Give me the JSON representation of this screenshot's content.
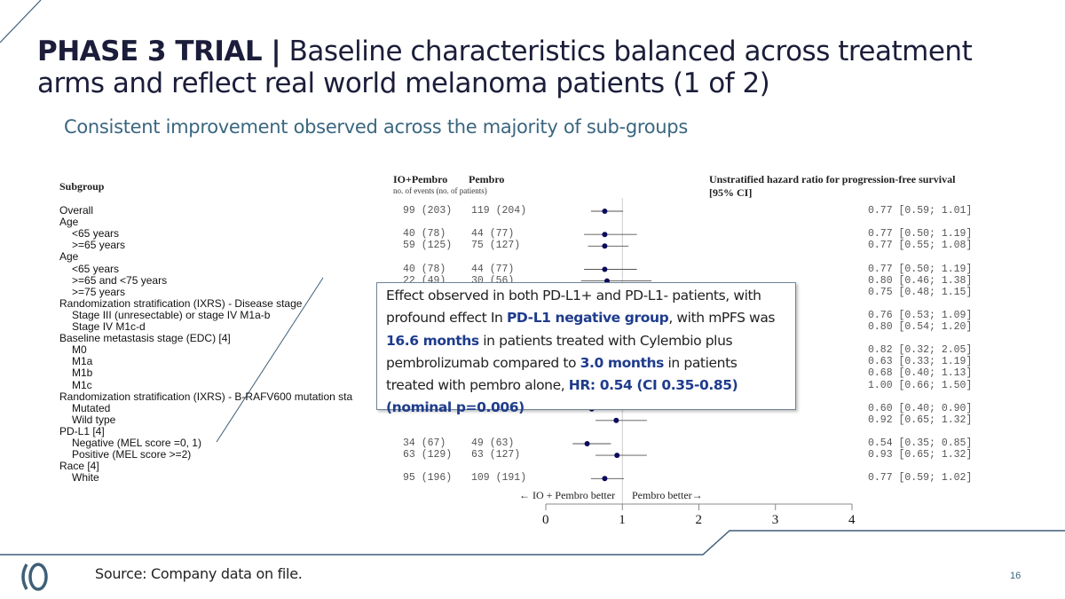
{
  "header": {
    "title_bold": "PHASE 3 TRIAL |",
    "title_rest": " Baseline characteristics balanced across treatment arms and reflect real world melanoma patients (1 of 2)",
    "subtitle": "Consistent improvement observed across the majority of sub-groups"
  },
  "callout": {
    "p1": "Effect observed in both PD-L1+ and PD-L1- patients, with profound effect In ",
    "b1": "PD-L1 negative group",
    "p2": ", with mPFS was ",
    "b2": "16.6 months",
    "p3": " in patients treated with Cylembio plus pembrolizumab compared to ",
    "b3": "3.0 months",
    "p4": " in patients treated with pembro alone, ",
    "b4": "HR: 0.54 (CI 0.35-0.85) (nominal p=0.006)"
  },
  "footer": {
    "source": "Source: Company data on file.",
    "page": "16",
    "logo_text": "IO"
  },
  "colors": {
    "accent": "#1f3c8c",
    "title": "#1b1d3a",
    "subtitle": "#3a6680",
    "marker": "#0b0b5e",
    "rule": "#3f5f78"
  },
  "chart_data": {
    "type": "forest",
    "col_subgroup": "Subgroup",
    "col_arm1": "IO+Pembro",
    "col_arm2": "Pembro",
    "col_counts_note": "no. of events  (no. of patients)",
    "col_hr": "Unstratified hazard ratio for progression-free survival",
    "col_hr2": "[95% CI]",
    "xlim": [
      0,
      4
    ],
    "xticks": [
      "0",
      "1",
      "2",
      "3",
      "4"
    ],
    "reference_line": 1,
    "left_label": "← IO + Pembro better",
    "right_label": "Pembro better→",
    "rows": [
      {
        "label": "Overall",
        "indent": 0,
        "io": "99 (203)",
        "pem": "119 (204)",
        "hr": 0.77,
        "lo": 0.59,
        "hi": 1.01
      },
      {
        "label": "Age",
        "indent": 0
      },
      {
        "label": "<65 years",
        "indent": 1,
        "io": "40 (78)",
        "pem": "44 (77)",
        "hr": 0.77,
        "lo": 0.5,
        "hi": 1.19
      },
      {
        "label": ">=65 years",
        "indent": 1,
        "io": "59 (125)",
        "pem": "75 (127)",
        "hr": 0.77,
        "lo": 0.55,
        "hi": 1.08
      },
      {
        "label": "Age",
        "indent": 0
      },
      {
        "label": "<65 years",
        "indent": 1,
        "io": "40 (78)",
        "pem": "44 (77)",
        "hr": 0.77,
        "lo": 0.5,
        "hi": 1.19
      },
      {
        "label": ">=65 and <75 years",
        "indent": 1,
        "io": "22 (49)",
        "pem": "30 (56)",
        "hr": 0.8,
        "lo": 0.46,
        "hi": 1.38
      },
      {
        "label": ">=75 years",
        "indent": 1,
        "hr": 0.75,
        "lo": 0.48,
        "hi": 1.15
      },
      {
        "label": "Randomization stratification (IXRS) - Disease stage",
        "indent": 0
      },
      {
        "label": "Stage III (unresectable) or stage IV M1a-b",
        "indent": 1,
        "hr": 0.76,
        "lo": 0.53,
        "hi": 1.09
      },
      {
        "label": "Stage IV M1c-d",
        "indent": 1,
        "hr": 0.8,
        "lo": 0.54,
        "hi": 1.2
      },
      {
        "label": "Baseline metastasis stage (EDC) [4]",
        "indent": 0
      },
      {
        "label": "M0",
        "indent": 1,
        "hr": 0.82,
        "lo": 0.32,
        "hi": 2.05
      },
      {
        "label": "M1a",
        "indent": 1,
        "hr": 0.63,
        "lo": 0.33,
        "hi": 1.19
      },
      {
        "label": "M1b",
        "indent": 1,
        "hr": 0.68,
        "lo": 0.4,
        "hi": 1.13
      },
      {
        "label": "M1c",
        "indent": 1,
        "hr": 1.0,
        "lo": 0.66,
        "hi": 1.5
      },
      {
        "label": "Randomization stratification (IXRS) - B-RAFV600 mutation sta",
        "indent": 0
      },
      {
        "label": "Mutated",
        "indent": 1,
        "hr": 0.6,
        "lo": 0.4,
        "hi": 0.9
      },
      {
        "label": "Wild type",
        "indent": 1,
        "hr": 0.92,
        "lo": 0.65,
        "hi": 1.32
      },
      {
        "label": "PD-L1 [4]",
        "indent": 0
      },
      {
        "label": "Negative (MEL score =0, 1)",
        "indent": 1,
        "io": "34 (67)",
        "pem": "49 (63)",
        "hr": 0.54,
        "lo": 0.35,
        "hi": 0.85
      },
      {
        "label": "Positive (MEL score >=2)",
        "indent": 1,
        "io": "63 (129)",
        "pem": "63 (127)",
        "hr": 0.93,
        "lo": 0.65,
        "hi": 1.32
      },
      {
        "label": "Race [4]",
        "indent": 0
      },
      {
        "label": "White",
        "indent": 1,
        "io": "95 (196)",
        "pem": "109 (191)",
        "hr": 0.77,
        "lo": 0.59,
        "hi": 1.02
      }
    ]
  }
}
